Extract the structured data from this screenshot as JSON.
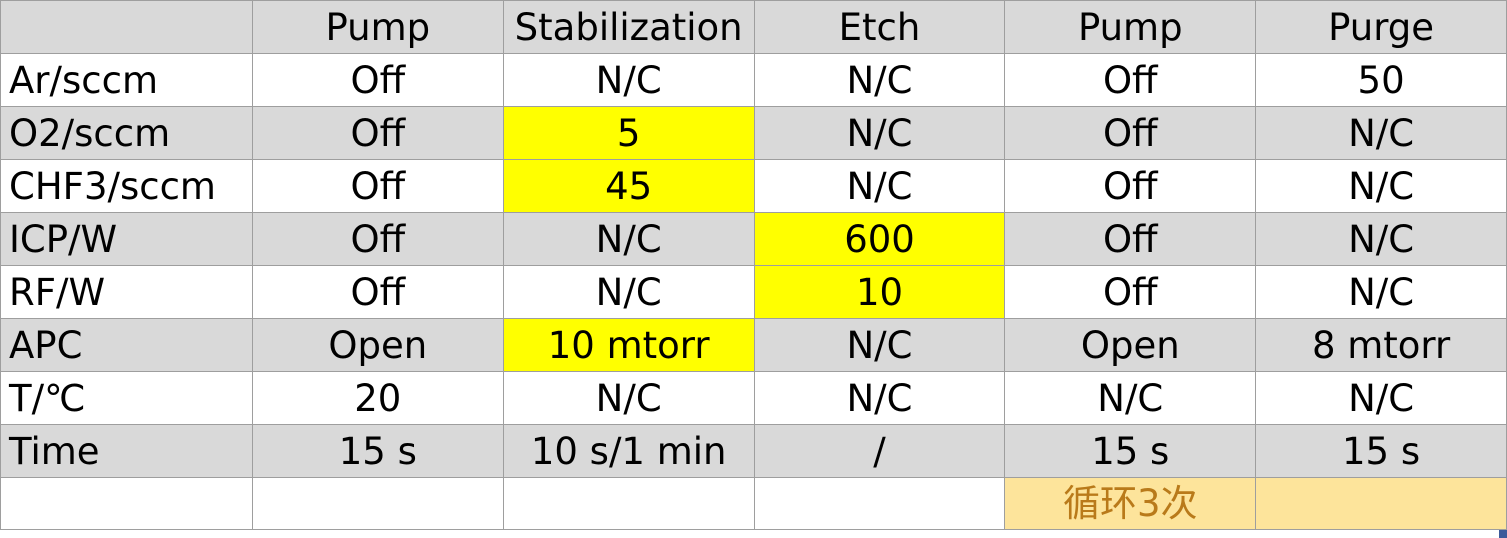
{
  "header": [
    "",
    "Pump",
    "Stabilization",
    "Etch",
    "Pump",
    "Purge"
  ],
  "rows": [
    {
      "label": "Ar/sccm",
      "cells": [
        "Off",
        "N/C",
        "N/C",
        "Off",
        "50"
      ]
    },
    {
      "label": "O2/sccm",
      "cells": [
        "Off",
        "5",
        "N/C",
        "Off",
        "N/C"
      ]
    },
    {
      "label": "CHF3/sccm",
      "cells": [
        "Off",
        "45",
        "N/C",
        "Off",
        "N/C"
      ]
    },
    {
      "label": "ICP/W",
      "cells": [
        "Off",
        "N/C",
        "600",
        "Off",
        "N/C"
      ]
    },
    {
      "label": "RF/W",
      "cells": [
        "Off",
        "N/C",
        "10",
        "Off",
        "N/C"
      ]
    },
    {
      "label": "APC",
      "cells": [
        "Open",
        "10 mtorr",
        "N/C",
        "Open",
        "8 mtorr"
      ]
    },
    {
      "label": "T/℃",
      "cells": [
        "20",
        "N/C",
        "N/C",
        "N/C",
        "N/C"
      ]
    },
    {
      "label": "Time",
      "cells": [
        "15 s",
        "10 s/1 min",
        "/",
        "15 s",
        "15 s"
      ]
    }
  ],
  "footer": {
    "cells": [
      "",
      "",
      "",
      "",
      "循环3次",
      ""
    ]
  },
  "colors": {
    "highlight": "#ffff00",
    "note_fill": "#fde49b",
    "note_text": "#b97a1a",
    "shaded_row": "#d9d9d9",
    "grid": "#9e9e9e"
  }
}
